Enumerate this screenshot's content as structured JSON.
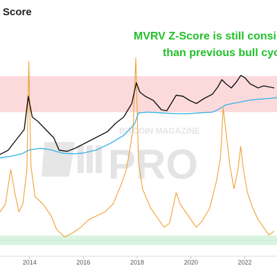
{
  "title": "Score",
  "annotation": {
    "lines": [
      "MVRV Z-Score is still consi",
      "than previous bull cyc"
    ],
    "color": "#22c02a"
  },
  "watermark": {
    "top": "BITCOIN MAGAZINE",
    "big": "PRO"
  },
  "colors": {
    "price": "#111111",
    "realized": "#3db5e6",
    "zscore": "#f0a030",
    "top_band": "#fbd4d6",
    "bottom_band": "#d3f2dc"
  },
  "chart_data": {
    "type": "line",
    "xlim": [
      2012.9,
      2023.2
    ],
    "x_ticks": [
      "2014",
      "2016",
      "2018",
      "2020",
      "2022"
    ],
    "x_tick_values": [
      2014,
      2016,
      2018,
      2020,
      2022
    ],
    "bands": [
      {
        "name": "top-zone",
        "from": 0.0,
        "to": 1.0
      },
      {
        "name": "bottom-zone",
        "from": 0.0,
        "to": 1.0
      }
    ],
    "series": [
      {
        "key": "price",
        "x": [
          2012.9,
          2013.2,
          2013.5,
          2013.8,
          2013.95,
          2014.1,
          2014.3,
          2014.6,
          2014.9,
          2015.1,
          2015.4,
          2015.7,
          2016.0,
          2016.3,
          2016.6,
          2016.9,
          2017.2,
          2017.5,
          2017.8,
          2017.97,
          2018.1,
          2018.3,
          2018.6,
          2018.9,
          2019.1,
          2019.45,
          2019.7,
          2019.95,
          2020.2,
          2020.5,
          2020.8,
          2021.0,
          2021.15,
          2021.3,
          2021.5,
          2021.7,
          2021.85,
          2022.0,
          2022.2,
          2022.5,
          2022.7,
          2022.9,
          2023.1
        ],
        "values": [
          0.06,
          0.1,
          0.2,
          0.3,
          0.62,
          0.42,
          0.38,
          0.3,
          0.22,
          0.1,
          0.09,
          0.12,
          0.16,
          0.2,
          0.24,
          0.28,
          0.36,
          0.42,
          0.55,
          0.75,
          0.66,
          0.62,
          0.58,
          0.49,
          0.48,
          0.63,
          0.62,
          0.58,
          0.55,
          0.6,
          0.64,
          0.71,
          0.78,
          0.74,
          0.7,
          0.76,
          0.82,
          0.8,
          0.74,
          0.7,
          0.72,
          0.71,
          0.7
        ]
      },
      {
        "key": "realized",
        "x": [
          2012.9,
          2013.3,
          2013.7,
          2014.0,
          2014.4,
          2014.8,
          2015.2,
          2015.6,
          2016.0,
          2016.5,
          2017.0,
          2017.5,
          2017.9,
          2018.05,
          2018.4,
          2018.9,
          2019.4,
          2019.9,
          2020.3,
          2020.8,
          2021.0,
          2021.3,
          2021.6,
          2021.9,
          2022.2,
          2022.5,
          2022.9,
          2023.2
        ],
        "values": [
          0.0,
          0.02,
          0.05,
          0.1,
          0.12,
          0.1,
          0.06,
          0.05,
          0.06,
          0.1,
          0.18,
          0.28,
          0.42,
          0.56,
          0.57,
          0.56,
          0.55,
          0.55,
          0.56,
          0.57,
          0.6,
          0.66,
          0.68,
          0.7,
          0.72,
          0.73,
          0.74,
          0.75
        ]
      },
      {
        "key": "zscore",
        "x": [
          2012.9,
          2013.1,
          2013.3,
          2013.45,
          2013.6,
          2013.75,
          2013.9,
          2013.97,
          2014.05,
          2014.2,
          2014.5,
          2014.8,
          2015.0,
          2015.3,
          2015.6,
          2015.9,
          2016.2,
          2016.5,
          2016.8,
          2017.1,
          2017.4,
          2017.6,
          2017.75,
          2017.85,
          2017.95,
          2018.05,
          2018.2,
          2018.5,
          2018.8,
          2019.0,
          2019.2,
          2019.45,
          2019.6,
          2019.9,
          2020.2,
          2020.4,
          2020.7,
          2020.95,
          2021.1,
          2021.2,
          2021.3,
          2021.45,
          2021.6,
          2021.75,
          2021.85,
          2021.95,
          2022.1,
          2022.3,
          2022.5,
          2022.7,
          2022.9,
          2023.1
        ],
        "values": [
          0.18,
          0.22,
          0.4,
          0.28,
          0.18,
          0.22,
          0.4,
          0.96,
          0.42,
          0.26,
          0.22,
          0.16,
          0.09,
          0.05,
          0.07,
          0.1,
          0.14,
          0.16,
          0.18,
          0.22,
          0.32,
          0.4,
          0.52,
          0.62,
          0.98,
          0.44,
          0.3,
          0.2,
          0.14,
          0.1,
          0.12,
          0.28,
          0.22,
          0.16,
          0.1,
          0.13,
          0.2,
          0.34,
          0.46,
          0.72,
          0.6,
          0.42,
          0.3,
          0.4,
          0.52,
          0.4,
          0.28,
          0.2,
          0.14,
          0.1,
          0.06,
          0.08
        ]
      }
    ]
  }
}
